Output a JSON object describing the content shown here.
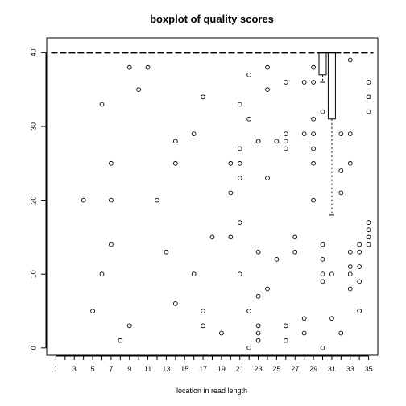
{
  "chart_data": {
    "type": "boxplot",
    "title": "boxplot of quality scores",
    "xlabel": "location in read length",
    "ylabel": "",
    "ylim": [
      -1,
      42
    ],
    "xlim": [
      0,
      36
    ],
    "x_tick_labels": [
      "1",
      "3",
      "5",
      "7",
      "9",
      "11",
      "13",
      "15",
      "17",
      "19",
      "21",
      "23",
      "25",
      "27",
      "29",
      "31",
      "33",
      "35"
    ],
    "y_ticks": [
      0,
      10,
      20,
      30,
      40
    ],
    "median_line": {
      "value": 40,
      "from_position": 1,
      "to_position": 35
    },
    "boxes": [
      {
        "position": 30,
        "q1": 37,
        "median": 40,
        "q3": 40,
        "whisker_low": 36,
        "whisker_high": 40
      },
      {
        "position": 31,
        "q1": 31,
        "median": 40,
        "q3": 40,
        "whisker_low": 18,
        "whisker_high": 40
      }
    ],
    "outliers": [
      [
        4,
        20
      ],
      [
        5,
        5
      ],
      [
        6,
        33
      ],
      [
        6,
        10
      ],
      [
        7,
        25
      ],
      [
        7,
        20
      ],
      [
        7,
        14
      ],
      [
        8,
        1
      ],
      [
        9,
        38
      ],
      [
        9,
        3
      ],
      [
        10,
        35
      ],
      [
        11,
        38
      ],
      [
        12,
        20
      ],
      [
        13,
        13
      ],
      [
        14,
        28
      ],
      [
        14,
        25
      ],
      [
        14,
        6
      ],
      [
        16,
        29
      ],
      [
        16,
        10
      ],
      [
        17,
        34
      ],
      [
        17,
        5
      ],
      [
        17,
        3
      ],
      [
        18,
        15
      ],
      [
        19,
        2
      ],
      [
        20,
        25
      ],
      [
        20,
        21
      ],
      [
        20,
        15
      ],
      [
        21,
        33
      ],
      [
        21,
        27
      ],
      [
        21,
        25
      ],
      [
        21,
        23
      ],
      [
        21,
        17
      ],
      [
        21,
        10
      ],
      [
        22,
        37
      ],
      [
        22,
        31
      ],
      [
        22,
        5
      ],
      [
        22,
        0
      ],
      [
        23,
        28
      ],
      [
        23,
        13
      ],
      [
        23,
        7
      ],
      [
        23,
        3
      ],
      [
        23,
        2
      ],
      [
        23,
        1
      ],
      [
        24,
        38
      ],
      [
        24,
        35
      ],
      [
        24,
        23
      ],
      [
        24,
        8
      ],
      [
        25,
        28
      ],
      [
        25,
        12
      ],
      [
        26,
        36
      ],
      [
        26,
        29
      ],
      [
        26,
        28
      ],
      [
        26,
        27
      ],
      [
        26,
        3
      ],
      [
        26,
        1
      ],
      [
        27,
        15
      ],
      [
        27,
        13
      ],
      [
        28,
        36
      ],
      [
        28,
        29
      ],
      [
        28,
        4
      ],
      [
        28,
        2
      ],
      [
        29,
        38
      ],
      [
        29,
        36
      ],
      [
        29,
        31
      ],
      [
        29,
        29
      ],
      [
        29,
        27
      ],
      [
        29,
        25
      ],
      [
        29,
        20
      ],
      [
        30,
        32
      ],
      [
        30,
        14
      ],
      [
        30,
        12
      ],
      [
        30,
        10
      ],
      [
        30,
        9
      ],
      [
        30,
        0
      ],
      [
        31,
        10
      ],
      [
        31,
        4
      ],
      [
        32,
        29
      ],
      [
        32,
        24
      ],
      [
        32,
        21
      ],
      [
        32,
        2
      ],
      [
        33,
        39
      ],
      [
        33,
        29
      ],
      [
        33,
        25
      ],
      [
        33,
        13
      ],
      [
        33,
        11
      ],
      [
        33,
        10
      ],
      [
        33,
        8
      ],
      [
        34,
        14
      ],
      [
        34,
        13
      ],
      [
        34,
        11
      ],
      [
        34,
        9
      ],
      [
        34,
        5
      ],
      [
        35,
        36
      ],
      [
        35,
        34
      ],
      [
        35,
        32
      ],
      [
        35,
        17
      ],
      [
        35,
        16
      ],
      [
        35,
        15
      ],
      [
        35,
        14
      ]
    ]
  }
}
